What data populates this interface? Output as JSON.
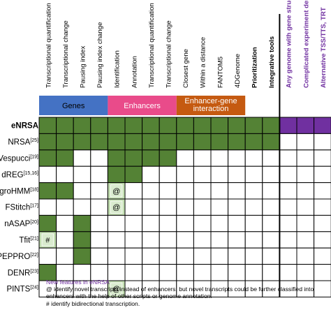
{
  "columns": [
    {
      "label": "Transcriptional quantification",
      "color": "#000000",
      "bold": false
    },
    {
      "label": "Transcriptional change",
      "color": "#000000",
      "bold": false
    },
    {
      "label": "Pausing index",
      "color": "#000000",
      "bold": false
    },
    {
      "label": "Pausing index change",
      "color": "#000000",
      "bold": false
    },
    {
      "label": "Identification",
      "color": "#000000",
      "bold": false
    },
    {
      "label": "Annotation",
      "color": "#000000",
      "bold": false
    },
    {
      "label": "Transcriptional quantification",
      "color": "#000000",
      "bold": false
    },
    {
      "label": "Transcriptional change",
      "color": "#000000",
      "bold": false
    },
    {
      "label": "Closest gene",
      "color": "#000000",
      "bold": false
    },
    {
      "label": "Within a distance",
      "color": "#000000",
      "bold": false
    },
    {
      "label": "FANTOM5",
      "color": "#000000",
      "bold": false
    },
    {
      "label": "4DGenome",
      "color": "#000000",
      "bold": false
    },
    {
      "label": "Prioritization",
      "color": "#000000",
      "bold": true
    },
    {
      "label": "Integrative tools",
      "color": "#000000",
      "bold": true
    },
    {
      "label": "Any genome with gene structure",
      "color": "#7030a0",
      "bold": true
    },
    {
      "label": "Complicated experiment design",
      "color": "#7030a0",
      "bold": true
    },
    {
      "label": "Alternative TSS/TTS, TRT",
      "color": "#7030a0",
      "bold": true
    }
  ],
  "groups": [
    {
      "label": "Genes",
      "start": 0,
      "span": 4,
      "color": "#4472c4",
      "text_color": "#000000"
    },
    {
      "label": "Enhancers",
      "start": 4,
      "span": 4,
      "color": "#e94b8a",
      "text_color": "#ffffff"
    },
    {
      "label": "Enhancer-gene interaction",
      "start": 8,
      "span": 4,
      "color": "#c55a11",
      "text_color": "#ffffff"
    }
  ],
  "rows": [
    {
      "name": "eNRSA",
      "sup": "",
      "bold": true,
      "cells": [
        "g",
        "g",
        "g",
        "g",
        "g",
        "g",
        "g",
        "g",
        "g",
        "g",
        "g",
        "g",
        "g",
        "g",
        "p",
        "p",
        "p"
      ]
    },
    {
      "name": "NRSA",
      "sup": "[25]",
      "bold": false,
      "cells": [
        "g",
        "g",
        "g",
        "g",
        "g",
        "g",
        "g",
        "g",
        "g",
        "g",
        "g",
        "g",
        "g",
        "g",
        "",
        "",
        ""
      ]
    },
    {
      "name": "Vespucci",
      "sup": "[19]",
      "bold": false,
      "cells": [
        "g",
        "g",
        "",
        "",
        "g",
        "g",
        "g",
        "g",
        "",
        "",
        "",
        "",
        "",
        "",
        "",
        "",
        ""
      ]
    },
    {
      "name": "dREG",
      "sup": "[15,16]",
      "bold": false,
      "cells": [
        "",
        "",
        "",
        "",
        "g",
        "g",
        "",
        "",
        "",
        "",
        "",
        "",
        "",
        "",
        "",
        "",
        ""
      ]
    },
    {
      "name": "groHMM",
      "sup": "[18]",
      "bold": false,
      "cells": [
        "g",
        "g",
        "",
        "",
        "l@",
        "",
        "",
        "",
        "",
        "",
        "",
        "",
        "",
        "",
        "",
        "",
        ""
      ]
    },
    {
      "name": "FStitch",
      "sup": "[17]",
      "bold": false,
      "cells": [
        "",
        "",
        "",
        "",
        "l@",
        "",
        "",
        "",
        "",
        "",
        "",
        "",
        "",
        "",
        "",
        "",
        ""
      ]
    },
    {
      "name": "nASAP",
      "sup": "[20]",
      "bold": false,
      "cells": [
        "g",
        "",
        "g",
        "",
        "",
        "",
        "",
        "",
        "",
        "",
        "",
        "",
        "",
        "",
        "",
        "",
        ""
      ]
    },
    {
      "name": "Tfit",
      "sup": "[21]",
      "bold": false,
      "cells": [
        "l#",
        "",
        "g",
        "",
        "",
        "",
        "",
        "",
        "",
        "",
        "",
        "",
        "",
        "",
        "",
        "",
        ""
      ]
    },
    {
      "name": "PEPPRO",
      "sup": "[22]",
      "bold": false,
      "cells": [
        "",
        "",
        "g",
        "",
        "",
        "",
        "",
        "",
        "",
        "",
        "",
        "",
        "",
        "",
        "",
        "",
        ""
      ]
    },
    {
      "name": "DENR",
      "sup": "[23]",
      "bold": false,
      "cells": [
        "g",
        "",
        "",
        "",
        "",
        "",
        "",
        "",
        "",
        "",
        "",
        "",
        "",
        "",
        "",
        "",
        ""
      ]
    },
    {
      "name": "PINTS",
      "sup": "[24]",
      "bold": false,
      "cells": [
        "",
        "",
        "",
        "",
        "l@",
        "",
        "",
        "",
        "",
        "",
        "",
        "",
        "",
        "",
        "",
        "",
        ""
      ]
    }
  ],
  "colors": {
    "green": "#548235",
    "light_green": "#c5e0b4",
    "purple": "#7030a0",
    "grid": "#000000"
  },
  "notes": {
    "new_features": "New features in eNRSA",
    "at_note": "@ identify novel transcripts instead of enhancers, but novel transcripts could be further classified into enhancers with the help of other scripts or genome annotation.",
    "hash_note": "# identify bidirectional transcription."
  }
}
